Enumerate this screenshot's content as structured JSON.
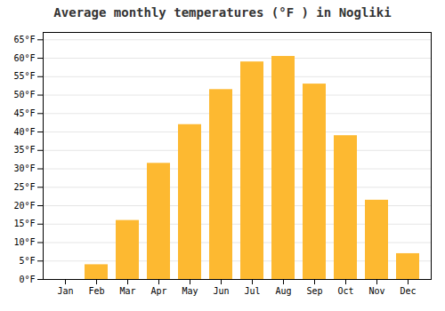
{
  "chart_data": {
    "type": "bar",
    "title": "Average monthly temperatures (°F ) in Nogliki",
    "categories": [
      "Jan",
      "Feb",
      "Mar",
      "Apr",
      "May",
      "Jun",
      "Jul",
      "Aug",
      "Sep",
      "Oct",
      "Nov",
      "Dec"
    ],
    "values": [
      0,
      4,
      16,
      31.5,
      42,
      51.5,
      59,
      60.5,
      53,
      39,
      21.5,
      7
    ],
    "color": "#FDB931",
    "ylim": [
      0,
      67
    ],
    "yticks": [
      {
        "value": 0,
        "label": "0°F"
      },
      {
        "value": 5,
        "label": "5°F"
      },
      {
        "value": 10,
        "label": "10°F"
      },
      {
        "value": 15,
        "label": "15°F"
      },
      {
        "value": 20,
        "label": "20°F"
      },
      {
        "value": 25,
        "label": "25°F"
      },
      {
        "value": 30,
        "label": "30°F"
      },
      {
        "value": 35,
        "label": "35°F"
      },
      {
        "value": 40,
        "label": "40°F"
      },
      {
        "value": 45,
        "label": "45°F"
      },
      {
        "value": 50,
        "label": "50°F"
      },
      {
        "value": 55,
        "label": "55°F"
      },
      {
        "value": 60,
        "label": "60°F"
      },
      {
        "value": 65,
        "label": "65°F"
      }
    ],
    "grid": true
  }
}
